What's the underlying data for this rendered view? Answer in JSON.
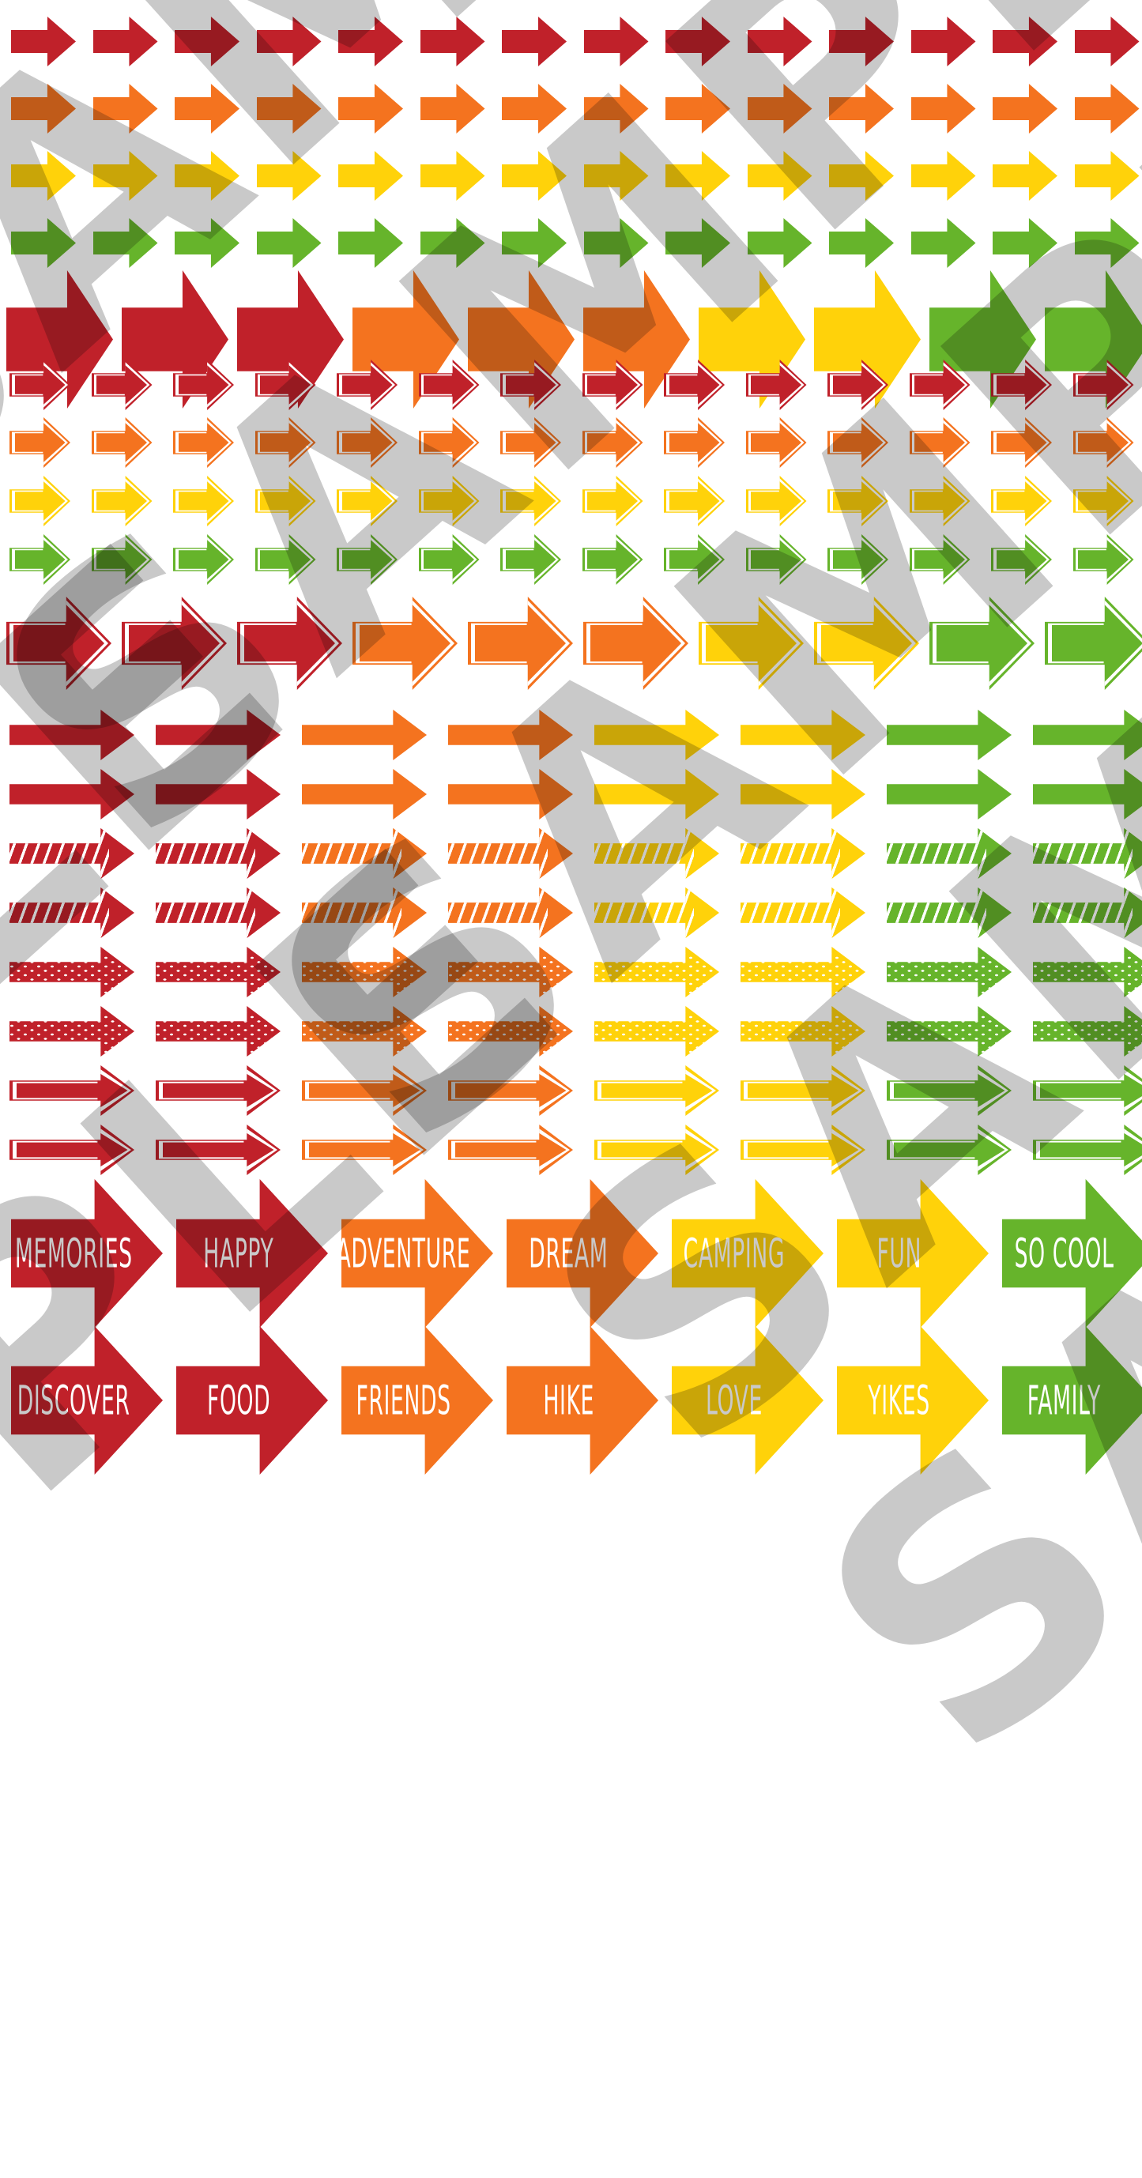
{
  "sheet": {
    "background": "#ffffff"
  },
  "palette": {
    "red": "#c0212a",
    "orange": "#f4731f",
    "yellow": "#ffd20a",
    "green": "#66b42b",
    "label_text": "#ffffff"
  },
  "watermark": {
    "text": "SAMPLE",
    "color": "#c9c9c9"
  },
  "rows": [
    {
      "style": "solid-small",
      "color": "red",
      "count": 14
    },
    {
      "style": "solid-small",
      "color": "orange",
      "count": 14
    },
    {
      "style": "solid-small",
      "color": "yellow",
      "count": 14
    },
    {
      "style": "solid-small",
      "color": "green",
      "count": 14
    },
    {
      "style": "solid-big",
      "colors": [
        "red",
        "red",
        "red",
        "orange",
        "orange",
        "orange",
        "yellow",
        "yellow",
        "green",
        "green"
      ]
    },
    {
      "style": "outline-small",
      "color": "red",
      "count": 14
    },
    {
      "style": "outline-small",
      "color": "orange",
      "count": 14
    },
    {
      "style": "outline-small",
      "color": "yellow",
      "count": 14
    },
    {
      "style": "outline-small",
      "color": "green",
      "count": 14
    },
    {
      "style": "outline-big",
      "colors": [
        "red",
        "red",
        "red",
        "orange",
        "orange",
        "orange",
        "yellow",
        "yellow",
        "green",
        "green"
      ]
    },
    {
      "style": "solid-long",
      "colors": [
        "red",
        "red",
        "orange",
        "orange",
        "yellow",
        "yellow",
        "green",
        "green"
      ]
    },
    {
      "style": "solid-long",
      "colors": [
        "red",
        "red",
        "orange",
        "orange",
        "yellow",
        "yellow",
        "green",
        "green"
      ]
    },
    {
      "style": "striped-long",
      "colors": [
        "red",
        "red",
        "orange",
        "orange",
        "yellow",
        "yellow",
        "green",
        "green"
      ]
    },
    {
      "style": "striped-long",
      "colors": [
        "red",
        "red",
        "orange",
        "orange",
        "yellow",
        "yellow",
        "green",
        "green"
      ]
    },
    {
      "style": "dotted-long",
      "colors": [
        "red",
        "red",
        "orange",
        "orange",
        "yellow",
        "yellow",
        "green",
        "green"
      ]
    },
    {
      "style": "dotted-long",
      "colors": [
        "red",
        "red",
        "orange",
        "orange",
        "yellow",
        "yellow",
        "green",
        "green"
      ]
    },
    {
      "style": "outline-long",
      "colors": [
        "red",
        "red",
        "orange",
        "orange",
        "yellow",
        "yellow",
        "green",
        "green"
      ]
    },
    {
      "style": "outline-long",
      "colors": [
        "red",
        "red",
        "orange",
        "orange",
        "yellow",
        "yellow",
        "green",
        "green"
      ]
    },
    {
      "style": "labeled-big",
      "items": [
        {
          "color": "red",
          "label": "MEMORIES"
        },
        {
          "color": "red",
          "label": "HAPPY"
        },
        {
          "color": "orange",
          "label": "ADVENTURE"
        },
        {
          "color": "orange",
          "label": "DREAM"
        },
        {
          "color": "yellow",
          "label": "CAMPING"
        },
        {
          "color": "yellow",
          "label": "FUN"
        },
        {
          "color": "green",
          "label": "SO COOL"
        }
      ]
    },
    {
      "style": "labeled-big",
      "items": [
        {
          "color": "red",
          "label": "DISCOVER"
        },
        {
          "color": "red",
          "label": "FOOD"
        },
        {
          "color": "orange",
          "label": "FRIENDS"
        },
        {
          "color": "orange",
          "label": "HIKE"
        },
        {
          "color": "yellow",
          "label": "LOVE"
        },
        {
          "color": "yellow",
          "label": "YIKES"
        },
        {
          "color": "green",
          "label": "FAMILY"
        }
      ]
    }
  ]
}
